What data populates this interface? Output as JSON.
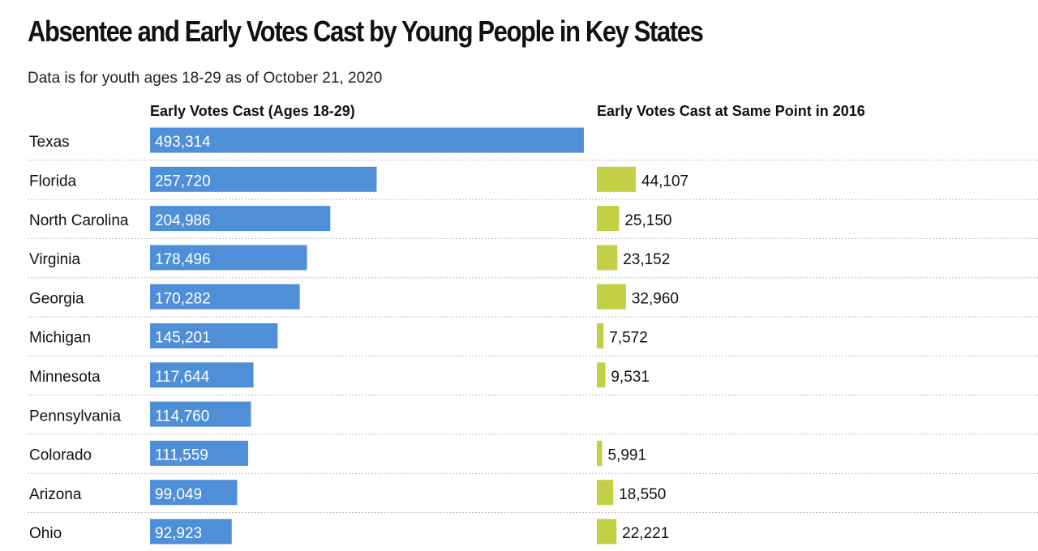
{
  "title": "Absentee and Early Votes Cast by Young People in Key States",
  "subtitle": "Data is for youth ages 18-29 as of October 21, 2020",
  "colors": {
    "bar_2020": "#4f8fd8",
    "bar_2016": "#c3cf45",
    "divider": "#bfbfbf"
  },
  "chart_data": {
    "type": "bar",
    "orientation": "horizontal",
    "grid": false,
    "categories": [
      "Texas",
      "Florida",
      "North Carolina",
      "Virginia",
      "Georgia",
      "Michigan",
      "Minnesota",
      "Pennsylvania",
      "Colorado",
      "Arizona",
      "Ohio"
    ],
    "series": [
      {
        "name": "Early Votes Cast (Ages 18-29)",
        "values": [
          493314,
          257720,
          204986,
          178496,
          170282,
          145201,
          117644,
          114760,
          111559,
          99049,
          92923
        ],
        "labels": [
          "493,314",
          "257,720",
          "204,986",
          "178,496",
          "170,282",
          "145,201",
          "117,644",
          "114,760",
          "111,559",
          "99,049",
          "92,923"
        ]
      },
      {
        "name": "Early Votes Cast at Same Point in 2016",
        "values": [
          null,
          44107,
          25150,
          23152,
          32960,
          7572,
          9531,
          null,
          5991,
          18550,
          22221
        ],
        "labels": [
          "",
          "44,107",
          "25,150",
          "23,152",
          "32,960",
          "7,572",
          "9,531",
          "",
          "5,991",
          "18,550",
          "22,221"
        ]
      }
    ]
  }
}
